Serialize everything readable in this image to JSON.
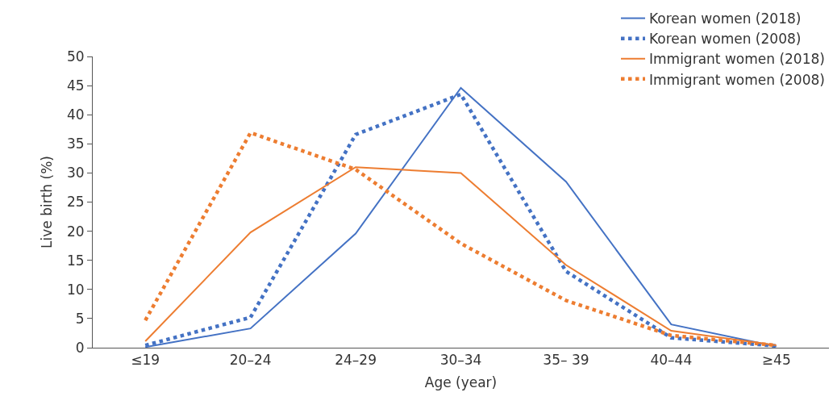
{
  "chart_data": {
    "type": "line",
    "xlabel": "Age (year)",
    "ylabel": "Live birth (%)",
    "categories": [
      "≤19",
      "20–24",
      "24–29",
      "30–34",
      "35– 39",
      "40–44",
      "≥45"
    ],
    "ylim": [
      0,
      50
    ],
    "yticks": [
      0,
      5,
      10,
      15,
      20,
      25,
      30,
      35,
      40,
      45,
      50
    ],
    "grid": false,
    "legend": "top right",
    "marker": "none",
    "series": [
      {
        "name": "Korean women (2018)",
        "color": "#4472c4",
        "line_style": "solid",
        "values": [
          0.1,
          3.3,
          19.6,
          44.6,
          28.5,
          4.0,
          0.2
        ]
      },
      {
        "name": "Korean women (2008)",
        "color": "#4472c4",
        "line_style": "dotted",
        "values": [
          0.4,
          5.2,
          36.6,
          43.5,
          13.1,
          1.7,
          0.3
        ]
      },
      {
        "name": "Immigrant women (2018)",
        "color": "#ed7d31",
        "line_style": "solid",
        "values": [
          1.1,
          19.8,
          31.0,
          30.0,
          14.2,
          2.9,
          0.4
        ]
      },
      {
        "name": "Immigrant women (2008)",
        "color": "#ed7d31",
        "line_style": "dotted",
        "values": [
          4.7,
          36.9,
          30.6,
          17.9,
          8.1,
          2.1,
          0.4
        ]
      }
    ]
  }
}
